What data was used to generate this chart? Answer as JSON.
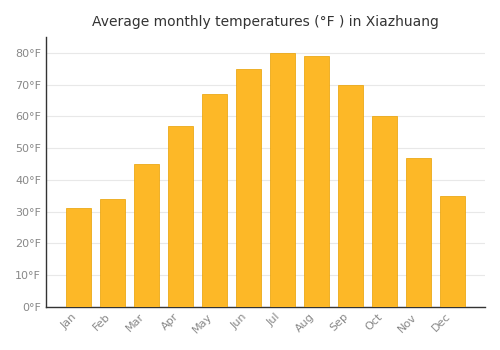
{
  "title": "Average monthly temperatures (°F ) in Xiazhuang",
  "months": [
    "Jan",
    "Feb",
    "Mar",
    "Apr",
    "May",
    "Jun",
    "Jul",
    "Aug",
    "Sep",
    "Oct",
    "Nov",
    "Dec"
  ],
  "values": [
    31,
    34,
    45,
    57,
    67,
    75,
    80,
    79,
    70,
    60,
    47,
    35
  ],
  "bar_color": "#FDB827",
  "bar_edge_color": "#E8A000",
  "background_color": "#ffffff",
  "grid_color": "#e8e8e8",
  "ylim": [
    0,
    85
  ],
  "yticks": [
    0,
    10,
    20,
    30,
    40,
    50,
    60,
    70,
    80
  ],
  "ytick_labels": [
    "0°F",
    "10°F",
    "20°F",
    "30°F",
    "40°F",
    "50°F",
    "60°F",
    "70°F",
    "80°F"
  ],
  "tick_color": "#888888",
  "title_fontsize": 10,
  "tick_fontsize": 8,
  "label_rotation": 45
}
